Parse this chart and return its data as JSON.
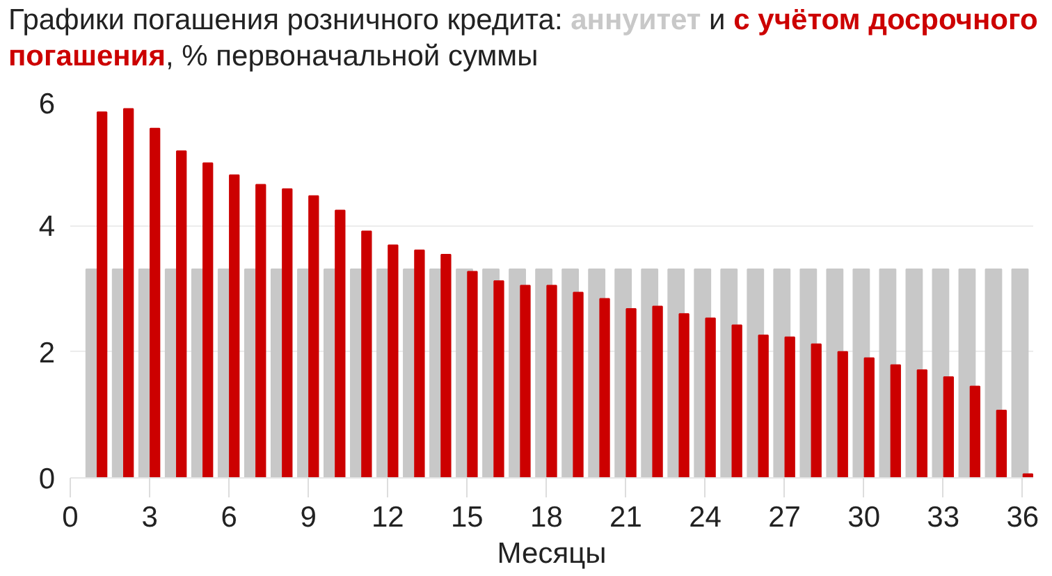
{
  "chart_data": {
    "type": "bar",
    "title": "Графики погашения розничного кредита:",
    "annotations": [
      "и",
      ", % первоначальной суммы"
    ],
    "xlabel": "Месяцы",
    "x": [
      1,
      2,
      3,
      4,
      5,
      6,
      7,
      8,
      9,
      10,
      11,
      12,
      13,
      14,
      15,
      16,
      17,
      18,
      19,
      20,
      21,
      22,
      23,
      24,
      25,
      26,
      27,
      28,
      29,
      30,
      31,
      32,
      33,
      34,
      35,
      36
    ],
    "series": [
      {
        "name": "аннуитет",
        "color": "#c8c8c8",
        "values": [
          3.31,
          3.31,
          3.31,
          3.31,
          3.31,
          3.31,
          3.31,
          3.31,
          3.31,
          3.31,
          3.31,
          3.31,
          3.31,
          3.31,
          3.31,
          3.31,
          3.31,
          3.31,
          3.31,
          3.31,
          3.31,
          3.31,
          3.31,
          3.31,
          3.31,
          3.31,
          3.31,
          3.31,
          3.31,
          3.31,
          3.31,
          3.31,
          3.31,
          3.31,
          3.31,
          3.31
        ]
      },
      {
        "name": "с учётом досрочного погашения",
        "color": "#cc0000",
        "values": [
          5.8,
          5.85,
          5.54,
          5.18,
          4.99,
          4.8,
          4.65,
          4.58,
          4.47,
          4.24,
          3.91,
          3.69,
          3.61,
          3.54,
          3.27,
          3.12,
          3.05,
          3.05,
          2.94,
          2.84,
          2.68,
          2.72,
          2.6,
          2.53,
          2.42,
          2.26,
          2.23,
          2.12,
          2.0,
          1.9,
          1.79,
          1.71,
          1.6,
          1.45,
          1.07,
          0.06
        ]
      }
    ],
    "xlim": [
      0,
      36.4
    ],
    "xticks": [
      0,
      3,
      6,
      9,
      12,
      15,
      18,
      21,
      24,
      27,
      30,
      33,
      36
    ],
    "ylim": [
      0,
      6
    ],
    "yticks": [
      0,
      2,
      4,
      6
    ],
    "grid": "y",
    "legend": false
  }
}
